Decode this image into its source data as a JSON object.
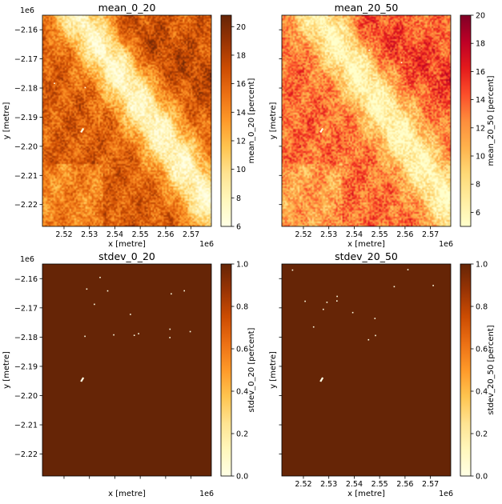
{
  "chart_data": [
    {
      "type": "heatmap",
      "title": "mean_0_20",
      "xlabel": "x [metre]",
      "ylabel": "y [metre]",
      "x_ticks": [
        "2.52",
        "2.53",
        "2.54",
        "2.55",
        "2.56",
        "2.57"
      ],
      "y_ticks": [
        "−2.16",
        "−2.17",
        "−2.18",
        "−2.19",
        "−2.20",
        "−2.21",
        "−2.22"
      ],
      "x_offset": "1e6",
      "y_offset": "1e6",
      "xlim": [
        2.5115,
        2.578
      ],
      "ylim": [
        -2.2275,
        -2.155
      ],
      "colorbar": {
        "label": "mean_0_20 [percent]",
        "ticks": [
          "6",
          "8",
          "10",
          "12",
          "14",
          "16",
          "18",
          "20"
        ],
        "range": [
          6,
          20.8
        ],
        "colormap": "YlOrBr"
      },
      "pattern": "mean-low"
    },
    {
      "type": "heatmap",
      "title": "mean_20_50",
      "xlabel": "x [metre]",
      "ylabel": "y [metre]",
      "x_ticks": [
        "2.52",
        "2.53",
        "2.54",
        "2.55",
        "2.56",
        "2.57"
      ],
      "y_ticks": [],
      "x_offset": "1e6",
      "y_offset": "",
      "xlim": [
        2.5115,
        2.578
      ],
      "ylim": [
        -2.2275,
        -2.155
      ],
      "colorbar": {
        "label": "mean_20_50 [percent]",
        "ticks": [
          "6",
          "8",
          "10",
          "12",
          "14",
          "16",
          "18",
          "20"
        ],
        "range": [
          5,
          20
        ],
        "colormap": "YlOrRd"
      },
      "pattern": "mean-high"
    },
    {
      "type": "heatmap",
      "title": "stdev_0_20",
      "xlabel": "x [metre]",
      "ylabel": "y [metre]",
      "x_ticks": [],
      "y_ticks": [
        "−2.16",
        "−2.17",
        "−2.18",
        "−2.19",
        "−2.20",
        "−2.21",
        "−2.22"
      ],
      "x_offset": "1e6",
      "y_offset": "1e6",
      "xlim": [
        2.5115,
        2.578
      ],
      "ylim": [
        -2.2275,
        -2.155
      ],
      "colorbar": {
        "label": "stdev_0_20 [percent]",
        "ticks": [
          "0.0",
          "0.2",
          "0.4",
          "0.6",
          "0.8",
          "1.0"
        ],
        "range": [
          0,
          1
        ],
        "colormap": "YlOrBr"
      },
      "pattern": "stdev"
    },
    {
      "type": "heatmap",
      "title": "stdev_20_50",
      "xlabel": "x [metre]",
      "ylabel": "y [metre]",
      "x_ticks": [
        "2.52",
        "2.53",
        "2.54",
        "2.55",
        "2.56",
        "2.57"
      ],
      "y_ticks": [],
      "x_offset": "1e6",
      "y_offset": "",
      "xlim": [
        2.5115,
        2.578
      ],
      "ylim": [
        -2.2275,
        -2.155
      ],
      "colorbar": {
        "label": "stdev_20_50 [percent]",
        "ticks": [
          "0.0",
          "0.2",
          "0.4",
          "0.6",
          "0.8",
          "1.0"
        ],
        "range": [
          0,
          1
        ],
        "colormap": "YlOrBr"
      },
      "pattern": "stdev"
    }
  ],
  "colors": {
    "YlOrBr": [
      "#ffffe5",
      "#fff7bc",
      "#fee391",
      "#fec44f",
      "#fe9929",
      "#ec7014",
      "#cc4c02",
      "#993404",
      "#662506"
    ],
    "YlOrRd": [
      "#ffffcc",
      "#ffeda0",
      "#fed976",
      "#feb24c",
      "#fd8d3c",
      "#fc4e2a",
      "#e31a1c",
      "#bd0026",
      "#800026"
    ],
    "stdev_fill": "#662506",
    "highlight": "#ffffe5"
  }
}
